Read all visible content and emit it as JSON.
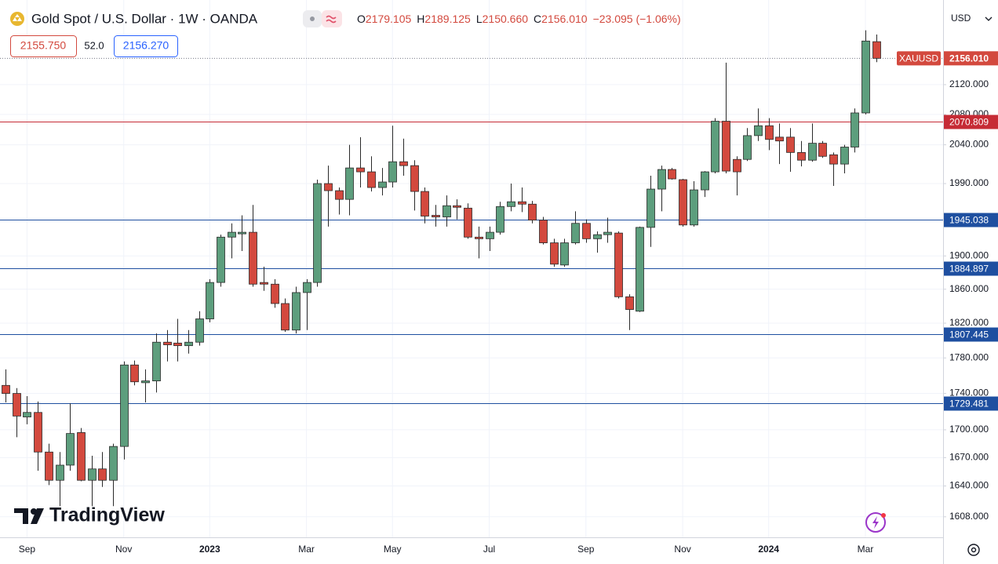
{
  "chart_data": {
    "type": "candlestick",
    "title": "Gold Spot / U.S. Dollar · 1W · OANDA",
    "legend": [
      [
        "O",
        "2179.105"
      ],
      [
        "H",
        "2189.125"
      ],
      [
        "L",
        "2150.660"
      ],
      [
        "C",
        "2156.010"
      ],
      [
        "",
        "−23.095 (−1.06%)"
      ]
    ],
    "sell_price": "2155.750",
    "spread": "52.0",
    "buy_price": "2156.270",
    "currency": "USD",
    "watermark": "TradingView",
    "symbol_label": "XAUUSD",
    "last_label": "2156.010",
    "up_color": "#5d9e7d",
    "down_color": "#d3493e",
    "wick_color": "#2a2a2a",
    "categories": [
      null,
      null,
      "Sep",
      null,
      null,
      null,
      null,
      null,
      null,
      null,
      null,
      "Nov",
      null,
      null,
      null,
      null,
      null,
      null,
      null,
      "2023",
      null,
      null,
      null,
      null,
      null,
      null,
      null,
      null,
      "Mar",
      null,
      null,
      null,
      null,
      null,
      null,
      null,
      "May",
      null,
      null,
      null,
      null,
      null,
      null,
      null,
      null,
      "Jul",
      null,
      null,
      null,
      null,
      null,
      null,
      null,
      null,
      "Sep",
      null,
      null,
      null,
      null,
      null,
      null,
      null,
      null,
      "Nov",
      null,
      null,
      null,
      null,
      null,
      null,
      null,
      "2024",
      null,
      null,
      null,
      null,
      null,
      null,
      null,
      null,
      "Mar",
      null
    ],
    "open": [
      1749,
      1740,
      1714,
      1719,
      1676,
      1646,
      1662,
      1697,
      1646,
      1658,
      1646,
      1682,
      1772,
      1752,
      1754,
      1798,
      1797,
      1794,
      1798,
      1825,
      1868,
      1923,
      1927,
      1929,
      1868,
      1866,
      1843,
      1812,
      1856,
      1868,
      1990,
      1981,
      1970,
      2010,
      2005,
      1985,
      1992,
      2018,
      2013,
      1980,
      1950,
      1948,
      1962,
      1959,
      1923,
      1921,
      1929,
      1961,
      1967,
      1964,
      1944,
      1916,
      1889,
      1916,
      1940,
      1921,
      1926,
      1928,
      1851,
      1834,
      1935,
      1983,
      2008,
      1995,
      1938,
      1982,
      2005,
      2071,
      2021,
      2021,
      2052,
      2065,
      2050,
      2050,
      2030,
      2020,
      2042,
      2027,
      2015,
      2037,
      2082,
      2179.105
    ],
    "high": [
      1767,
      1746,
      1737,
      1731,
      1685,
      1676,
      1729,
      1702,
      1672,
      1676,
      1685,
      1776,
      1777,
      1767,
      1808,
      1812,
      1825,
      1812,
      1834,
      1872,
      1926,
      1940,
      1950,
      1963,
      1887,
      1872,
      1849,
      1863,
      1872,
      1995,
      2013,
      1985,
      2040,
      2050,
      2025,
      2010,
      2065,
      2048,
      2020,
      1985,
      1963,
      1975,
      1970,
      1965,
      1936,
      1936,
      1967,
      1990,
      1985,
      1968,
      1948,
      1921,
      1921,
      1955,
      1945,
      1930,
      1947,
      1930,
      1854,
      1936,
      2000,
      2013,
      2010,
      1996,
      1993,
      2006,
      2075,
      2150,
      2025,
      2062,
      2088,
      2075,
      2068,
      2062,
      2045,
      2068,
      2045,
      2030,
      2040,
      2088,
      2195,
      2189.125
    ],
    "low": [
      1730,
      1692,
      1706,
      1656,
      1641,
      1619,
      1656,
      1645,
      1619,
      1639,
      1619,
      1668,
      1749,
      1730,
      1741,
      1776,
      1776,
      1785,
      1794,
      1821,
      1863,
      1897,
      1906,
      1863,
      1858,
      1838,
      1810,
      1808,
      1812,
      1863,
      1936,
      1951,
      1950,
      1985,
      1980,
      1975,
      1985,
      2000,
      1956,
      1940,
      1936,
      1936,
      1945,
      1921,
      1897,
      1906,
      1926,
      1955,
      1954,
      1940,
      1914,
      1887,
      1887,
      1914,
      1916,
      1904,
      1916,
      1849,
      1812,
      1833,
      1911,
      1955,
      1995,
      1936,
      1936,
      1973,
      2003,
      2003,
      1975,
      2019,
      2045,
      2033,
      2015,
      2005,
      2012,
      2018,
      2023,
      1987,
      2003,
      2030,
      2080,
      2150.66
    ],
    "close": [
      1740,
      1715,
      1719,
      1676,
      1646,
      1662,
      1696,
      1646,
      1658,
      1646,
      1682,
      1772,
      1753,
      1754,
      1798,
      1795,
      1794,
      1798,
      1825,
      1868,
      1923,
      1929,
      1929,
      1866,
      1866,
      1843,
      1812,
      1856,
      1868,
      1990,
      1981,
      1970,
      2010,
      2005,
      1985,
      1992,
      2018,
      2013,
      1980,
      1949,
      1948,
      1962,
      1960,
      1923,
      1921,
      1929,
      1961,
      1967,
      1964,
      1944,
      1916,
      1890,
      1916,
      1940,
      1921,
      1926,
      1929,
      1851,
      1836,
      1935,
      1983,
      2008,
      1996,
      1938,
      1982,
      2005,
      2071,
      2006,
      2005,
      2052,
      2065,
      2047,
      2045,
      2030,
      2020,
      2042,
      2025,
      2015,
      2037,
      2082,
      2180,
      2156.01
    ],
    "hlines": [
      {
        "value": 2070.809,
        "color": "#c62b35"
      },
      {
        "value": 1945.038,
        "color": "#1e4fa0"
      },
      {
        "value": 1884.897,
        "color": "#1e4fa0"
      },
      {
        "value": 1807.445,
        "color": "#1e4fa0"
      },
      {
        "value": 1729.481,
        "color": "#1e4fa0"
      }
    ],
    "log_scale": true,
    "grid": true,
    "ylim": [
      1587,
      2199
    ],
    "yticks": [
      {
        "value": 1608,
        "label": "1608.000"
      },
      {
        "value": 1640,
        "label": "1640.000"
      },
      {
        "value": 1670,
        "label": "1670.000"
      },
      {
        "value": 1700,
        "label": "1700.000"
      },
      {
        "value": 1740,
        "label": "1740.000"
      },
      {
        "value": 1780,
        "label": "1780.000"
      },
      {
        "value": 1820,
        "label": "1820.000"
      },
      {
        "value": 1860,
        "label": "1860.000"
      },
      {
        "value": 1900,
        "label": "1900.000"
      },
      {
        "value": 1990,
        "label": "1990.000"
      },
      {
        "value": 2040,
        "label": "2040.000"
      },
      {
        "value": 2080,
        "label": "2080.000"
      },
      {
        "value": 2120,
        "label": "2120.000"
      }
    ]
  }
}
